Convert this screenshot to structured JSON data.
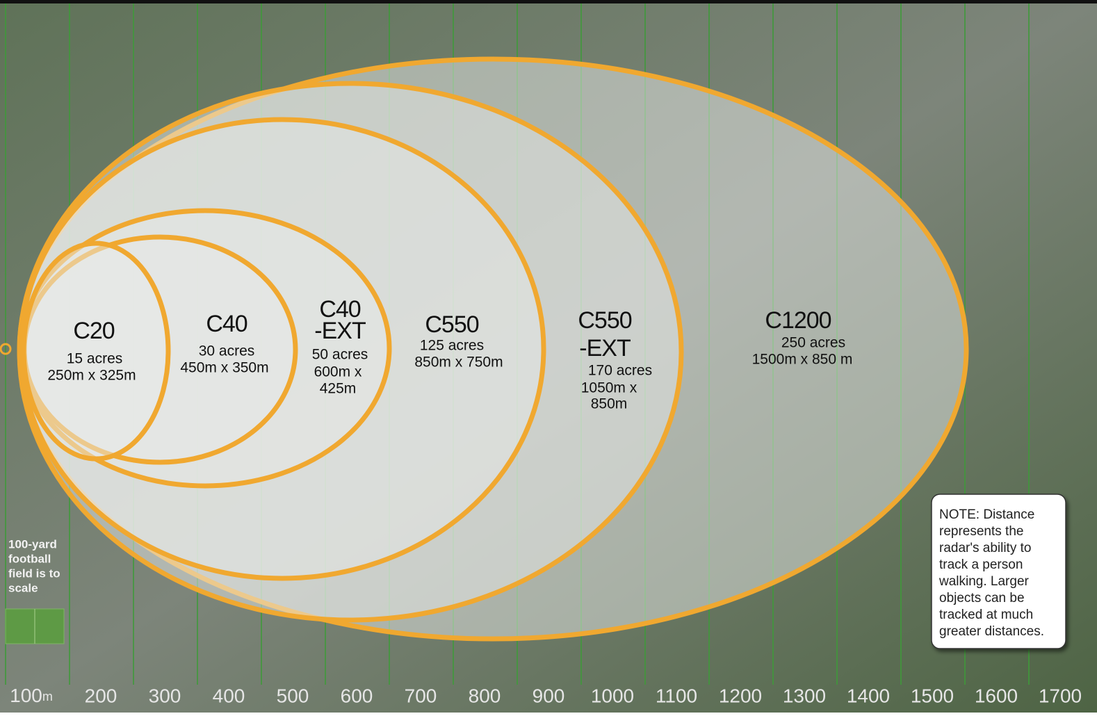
{
  "radars": [
    {
      "name_lines": [
        "C1200"
      ],
      "detail_lines": [
        "250 acres",
        "1500m x 850 m"
      ]
    },
    {
      "name_lines": [
        "C550",
        "-EXT"
      ],
      "detail_lines": [
        "170 acres",
        "1050m x",
        "850m"
      ]
    },
    {
      "name_lines": [
        "C550"
      ],
      "detail_lines": [
        "125 acres",
        "850m x 750m"
      ]
    },
    {
      "name_lines": [
        "C40",
        "-EXT"
      ],
      "detail_lines": [
        "50 acres",
        "600m x",
        "425m"
      ]
    },
    {
      "name_lines": [
        "C40"
      ],
      "detail_lines": [
        "30 acres",
        "450m x 350m"
      ]
    },
    {
      "name_lines": [
        "C20"
      ],
      "detail_lines": [
        "15 acres",
        "250m x 325m"
      ]
    }
  ],
  "football_label": [
    "100-yard",
    "football",
    "field is to",
    "scale"
  ],
  "note": [
    "NOTE: Distance",
    "represents the",
    "radar's ability to",
    "track a person",
    "walking. Larger",
    "objects can be",
    "tracked at much",
    "greater distances."
  ],
  "scale": {
    "first": {
      "number": "100",
      "unit": "m"
    },
    "rest": [
      "200",
      "300",
      "400",
      "500",
      "600",
      "700",
      "800",
      "900",
      "1000",
      "1100",
      "1200",
      "1300",
      "1400",
      "1500",
      "1600",
      "1700"
    ]
  }
}
